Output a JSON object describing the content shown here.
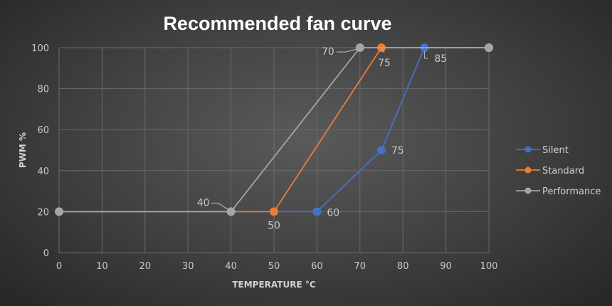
{
  "chart_data": {
    "type": "line",
    "title": "Recommended fan curve",
    "xlabel": "TEMPERATURE °C",
    "ylabel": "PWM %",
    "xlim": [
      0,
      100
    ],
    "ylim": [
      0,
      100
    ],
    "xticks": [
      0,
      10,
      20,
      30,
      40,
      50,
      60,
      70,
      80,
      90,
      100
    ],
    "yticks": [
      0,
      20,
      40,
      60,
      80,
      100
    ],
    "grid": true,
    "legend_position": "right",
    "series": [
      {
        "name": "Silent",
        "color": "#4472c4",
        "x": [
          0,
          60,
          75,
          85,
          100
        ],
        "y": [
          20,
          20,
          50,
          100,
          100
        ],
        "labeled_x": [
          60,
          75,
          85
        ]
      },
      {
        "name": "Standard",
        "color": "#ed7d31",
        "x": [
          0,
          50,
          75,
          100
        ],
        "y": [
          20,
          20,
          100,
          100
        ],
        "labeled_x": [
          50,
          75
        ]
      },
      {
        "name": "Performance",
        "color": "#a5a5a5",
        "x": [
          0,
          40,
          70,
          100
        ],
        "y": [
          20,
          20,
          100,
          100
        ],
        "labeled_x": [
          40,
          70
        ]
      }
    ]
  }
}
